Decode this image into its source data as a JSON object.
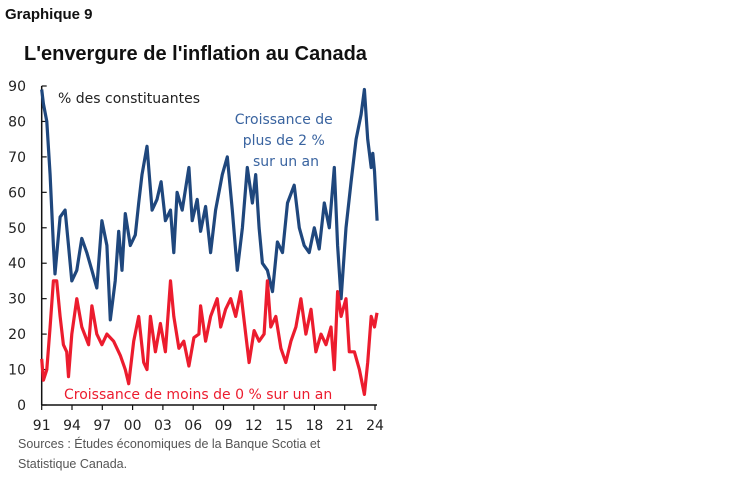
{
  "figure_label": "Graphique 9",
  "sources_line1": "Sources : Études économiques de la Banque Scotia et",
  "sources_line2": "Statistique Canada.",
  "chart_data": {
    "type": "line",
    "title": "L'envergure de l'inflation au Canada",
    "ylabel": "% des constituantes",
    "xlabel": "",
    "ylim": [
      0,
      90
    ],
    "yticks": [
      0,
      10,
      20,
      30,
      40,
      50,
      60,
      70,
      80,
      90
    ],
    "xlim": [
      1991,
      2024.2
    ],
    "xticks": [
      {
        "value": 1991,
        "label": "91"
      },
      {
        "value": 1994,
        "label": "94"
      },
      {
        "value": 1997,
        "label": "97"
      },
      {
        "value": 2000,
        "label": "00"
      },
      {
        "value": 2003,
        "label": "03"
      },
      {
        "value": 2006,
        "label": "06"
      },
      {
        "value": 2009,
        "label": "09"
      },
      {
        "value": 2012,
        "label": "12"
      },
      {
        "value": 2015,
        "label": "15"
      },
      {
        "value": 2018,
        "label": "18"
      },
      {
        "value": 2021,
        "label": "21"
      },
      {
        "value": 2024,
        "label": "24"
      }
    ],
    "grid": false,
    "series": [
      {
        "name": "Croissance de plus de 2 % sur un an",
        "name_lines": [
          "Croissance de",
          "plus de 2 %",
          "sur un an"
        ],
        "color": "#1f477d",
        "x": [
          1991.0,
          1991.17,
          1991.5,
          1991.83,
          1992.16,
          1992.32,
          1992.82,
          1993.32,
          1993.65,
          1993.98,
          1994.48,
          1994.97,
          1995.47,
          1995.97,
          1996.46,
          1996.96,
          1997.46,
          1997.79,
          1998.28,
          1998.62,
          1998.95,
          1999.28,
          1999.77,
          2000.27,
          2000.6,
          2000.93,
          2001.43,
          2001.93,
          2002.42,
          2002.82,
          2003.25,
          2003.75,
          2004.08,
          2004.41,
          2004.91,
          2005.57,
          2005.9,
          2006.4,
          2006.73,
          2007.23,
          2007.72,
          2008.22,
          2008.88,
          2009.38,
          2009.87,
          2010.37,
          2010.87,
          2011.36,
          2011.86,
          2012.19,
          2012.52,
          2012.85,
          2013.35,
          2013.85,
          2014.34,
          2014.84,
          2015.34,
          2016.0,
          2016.5,
          2016.99,
          2017.49,
          2017.99,
          2018.48,
          2018.98,
          2019.48,
          2019.97,
          2020.3,
          2020.64,
          2021.13,
          2021.63,
          2022.13,
          2022.62,
          2022.95,
          2023.28,
          2023.62,
          2023.78,
          2023.95,
          2024.21
        ],
        "y": [
          89,
          85,
          80,
          65,
          45,
          37,
          53,
          55,
          45,
          35,
          38,
          47,
          43,
          38,
          33,
          52,
          45,
          24,
          35,
          49,
          38,
          54,
          45,
          48,
          57,
          65,
          73,
          55,
          58,
          63,
          52,
          55,
          43,
          60,
          55,
          67,
          52,
          58,
          49,
          56,
          43,
          55,
          65,
          70,
          55,
          38,
          50,
          67,
          57,
          65,
          50,
          40,
          38,
          32,
          46,
          43,
          57,
          62,
          50,
          45,
          43,
          50,
          44,
          57,
          50,
          67,
          45,
          30,
          50,
          63,
          75,
          82,
          89,
          75,
          67,
          71,
          66,
          52
        ]
      },
      {
        "name": "Croissance de moins de 0 % sur un an",
        "color": "#ec1c2e",
        "x": [
          1991.0,
          1991.17,
          1991.5,
          1991.83,
          1992.16,
          1992.49,
          1992.82,
          1993.15,
          1993.48,
          1993.65,
          1993.98,
          1994.48,
          1994.97,
          1995.64,
          1995.97,
          1996.46,
          1996.96,
          1997.46,
          1998.12,
          1998.78,
          1999.28,
          1999.61,
          2000.11,
          2000.6,
          2001.1,
          2001.43,
          2001.76,
          2002.26,
          2002.75,
          2003.25,
          2003.75,
          2004.08,
          2004.58,
          2005.07,
          2005.57,
          2006.07,
          2006.56,
          2006.73,
          2007.23,
          2007.72,
          2008.38,
          2008.72,
          2009.21,
          2009.71,
          2010.21,
          2010.7,
          2011.2,
          2011.53,
          2012.03,
          2012.52,
          2013.02,
          2013.35,
          2013.68,
          2014.18,
          2014.68,
          2015.17,
          2015.67,
          2016.17,
          2016.66,
          2017.16,
          2017.66,
          2018.15,
          2018.65,
          2019.15,
          2019.64,
          2019.97,
          2020.3,
          2020.64,
          2021.13,
          2021.46,
          2021.96,
          2022.46,
          2022.95,
          2023.28,
          2023.62,
          2023.95,
          2024.2
        ],
        "y": [
          13,
          7,
          10,
          22,
          35,
          35,
          25,
          17,
          15,
          8,
          20,
          30,
          22,
          17,
          28,
          20,
          17,
          20,
          18,
          14,
          10,
          6,
          18,
          25,
          12,
          10,
          25,
          15,
          23,
          15,
          35,
          25,
          16,
          18,
          11,
          19,
          20,
          28,
          18,
          25,
          30,
          22,
          27,
          30,
          25,
          32,
          20,
          12,
          21,
          18,
          20,
          35,
          22,
          25,
          16,
          12,
          18,
          22,
          30,
          20,
          27,
          15,
          20,
          17,
          22,
          10,
          32,
          25,
          30,
          15,
          15,
          10,
          3,
          12,
          25,
          22,
          26
        ]
      }
    ]
  }
}
